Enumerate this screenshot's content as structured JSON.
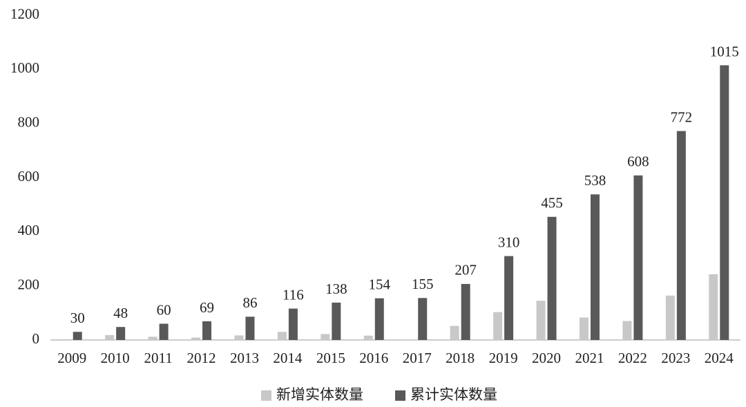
{
  "chart_data": {
    "type": "bar",
    "categories": [
      "2009",
      "2010",
      "2011",
      "2012",
      "2013",
      "2014",
      "2015",
      "2016",
      "2017",
      "2018",
      "2019",
      "2020",
      "2021",
      "2022",
      "2023",
      "2024"
    ],
    "series": [
      {
        "name": "新增实体数量",
        "color": "#c8c8c8",
        "values": [
          3,
          18,
          12,
          9,
          17,
          30,
          22,
          16,
          1,
          52,
          103,
          145,
          83,
          70,
          164,
          243
        ]
      },
      {
        "name": "累计实体数量",
        "color": "#595959",
        "values": [
          30,
          48,
          60,
          69,
          86,
          116,
          138,
          154,
          155,
          207,
          310,
          455,
          538,
          608,
          772,
          1015
        ],
        "show_labels": true
      }
    ],
    "ylim": [
      0,
      1200
    ],
    "yticks": [
      0,
      200,
      400,
      600,
      800,
      1000,
      1200
    ],
    "grid": false,
    "legend": "bottom"
  }
}
